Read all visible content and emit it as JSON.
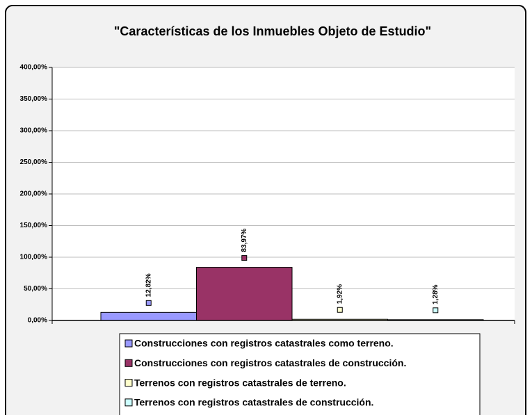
{
  "chart_data": {
    "type": "bar",
    "title": "\"Características de los Inmuebles Objeto de Estudio\"",
    "categories": [
      null
    ],
    "series": [
      {
        "name": "Construcciones con registros catastrales como terreno.",
        "color": "#9999ff",
        "values": [
          12.82
        ],
        "value_labels": [
          "12,82%"
        ]
      },
      {
        "name": "Construcciones con registros catastrales de construcción.",
        "color": "#993366",
        "values": [
          83.97
        ],
        "value_labels": [
          "83,97%"
        ]
      },
      {
        "name": "Terrenos con registros catastrales de terreno.",
        "color": "#ffffcc",
        "values": [
          1.92
        ],
        "value_labels": [
          "1,92%"
        ]
      },
      {
        "name": "Terrenos con registros catastrales de construcción.",
        "color": "#ccffff",
        "values": [
          1.28
        ],
        "value_labels": [
          "1,28%"
        ]
      }
    ],
    "ylim": [
      0,
      400
    ],
    "yticks": [
      {
        "value": 0,
        "label": "0,00%"
      },
      {
        "value": 50,
        "label": "50,00%"
      },
      {
        "value": 100,
        "label": "100,00%"
      },
      {
        "value": 150,
        "label": "150,00%"
      },
      {
        "value": 200,
        "label": "200,00%"
      },
      {
        "value": 250,
        "label": "250,00%"
      },
      {
        "value": 300,
        "label": "300,00%"
      },
      {
        "value": 350,
        "label": "350,00%"
      },
      {
        "value": 400,
        "label": "400,00%"
      }
    ],
    "grid": true
  }
}
